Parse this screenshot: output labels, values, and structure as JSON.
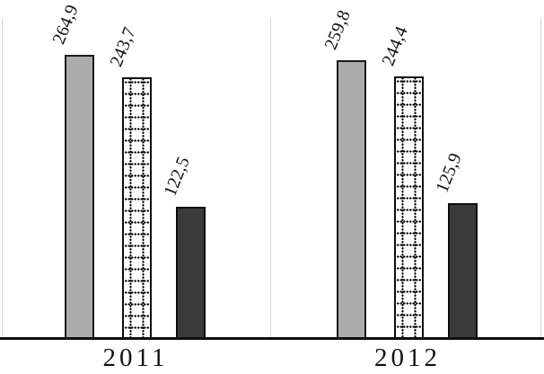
{
  "chart_data": {
    "type": "bar",
    "title": "",
    "xlabel": "",
    "ylabel": "",
    "categories": [
      "2011",
      "2012"
    ],
    "series": [
      {
        "name": "series-light-gray",
        "style": "gray",
        "values": [
          264.9,
          259.8
        ],
        "labels": [
          "264,9",
          "259,8"
        ]
      },
      {
        "name": "series-dotted",
        "style": "dotted",
        "values": [
          243.7,
          244.4
        ],
        "labels": [
          "243,7",
          "244,4"
        ]
      },
      {
        "name": "series-dark-gray",
        "style": "dark",
        "values": [
          122.5,
          125.9
        ],
        "labels": [
          "122,5",
          "125,9"
        ]
      }
    ],
    "ylim": [
      0,
      300
    ],
    "grid": false,
    "legend": false,
    "value_label_rotation_deg": -68,
    "decimal_separator": ","
  },
  "colors": {
    "bar_gray_fill": "#ababab",
    "bar_dotted_fill": "#ffffff",
    "bar_dark_fill": "#3b3b3b",
    "bar_border": "#1a1a1a",
    "axis_line": "#101010",
    "panel_divider": "#d7d7d7",
    "background": "#ffffff",
    "text": "#111111"
  }
}
